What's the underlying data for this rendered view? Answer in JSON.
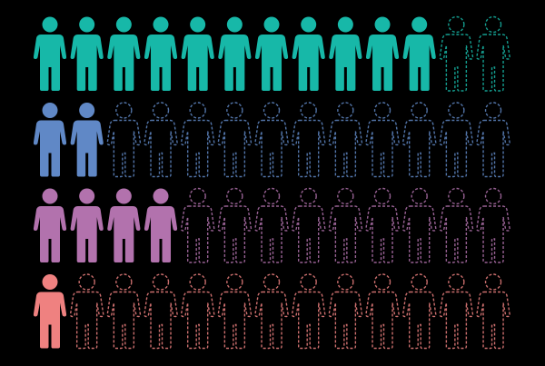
{
  "chart_data": {
    "type": "pictogram",
    "icon": "person-icon",
    "icons_per_row": 13,
    "background": "#000000",
    "rows": [
      {
        "filled": 11,
        "total": 13,
        "color": "#17b8a8"
      },
      {
        "filled": 2,
        "total": 13,
        "color": "#6088c6"
      },
      {
        "filled": 4,
        "total": 13,
        "color": "#b272ad"
      },
      {
        "filled": 1,
        "total": 13,
        "color": "#ef8180"
      }
    ]
  }
}
